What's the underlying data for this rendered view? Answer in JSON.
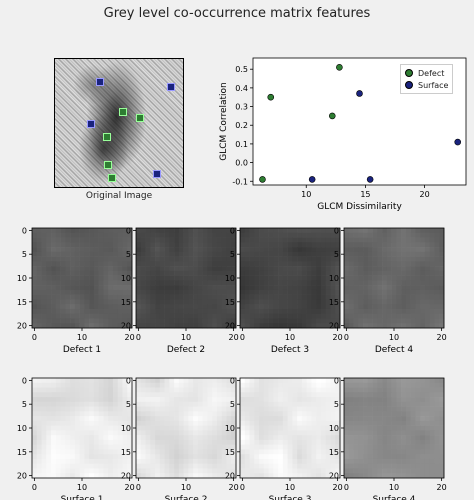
{
  "figure": {
    "title": "Grey level co-occurrence matrix features",
    "original_caption": "Original Image"
  },
  "colors": {
    "defect": "#2e7d32",
    "surface": "#1a237e"
  },
  "chart_data": [
    {
      "type": "scatter",
      "title": "",
      "xlabel": "GLCM Dissimilarity",
      "ylabel": "GLCM Correlation",
      "xlim": [
        5.5,
        23.5
      ],
      "ylim": [
        -0.12,
        0.56
      ],
      "xticks": [
        10,
        15,
        20
      ],
      "yticks": [
        -0.1,
        0.0,
        0.1,
        0.2,
        0.3,
        0.4,
        0.5
      ],
      "legend": "top-right",
      "series": [
        {
          "name": "Defect",
          "color": "#2e7d32",
          "x": [
            6.3,
            7.0,
            12.2,
            12.8
          ],
          "y": [
            -0.09,
            0.35,
            0.25,
            0.51
          ]
        },
        {
          "name": "Surface",
          "color": "#1a237e",
          "x": [
            10.5,
            14.5,
            15.4,
            22.8
          ],
          "y": [
            -0.09,
            0.37,
            -0.09,
            0.11
          ]
        }
      ]
    }
  ],
  "patches": {
    "ticks": [
      "0",
      "5",
      "10",
      "15",
      "20"
    ],
    "xticks": [
      "0",
      "10",
      "20"
    ],
    "labels": [
      "Defect 1",
      "Defect 2",
      "Defect 3",
      "Defect 4",
      "Surface 1",
      "Surface 2",
      "Surface 3",
      "Surface 4"
    ],
    "base_grey": [
      95,
      72,
      68,
      105,
      232,
      230,
      240,
      140
    ]
  },
  "markers": {
    "defect": [
      [
        0.52,
        0.41
      ],
      [
        0.66,
        0.45
      ],
      [
        0.4,
        0.6
      ],
      [
        0.41,
        0.82
      ],
      [
        0.44,
        0.92
      ]
    ],
    "surface": [
      [
        0.34,
        0.17
      ],
      [
        0.9,
        0.21
      ],
      [
        0.27,
        0.5
      ],
      [
        0.79,
        0.89
      ]
    ]
  }
}
